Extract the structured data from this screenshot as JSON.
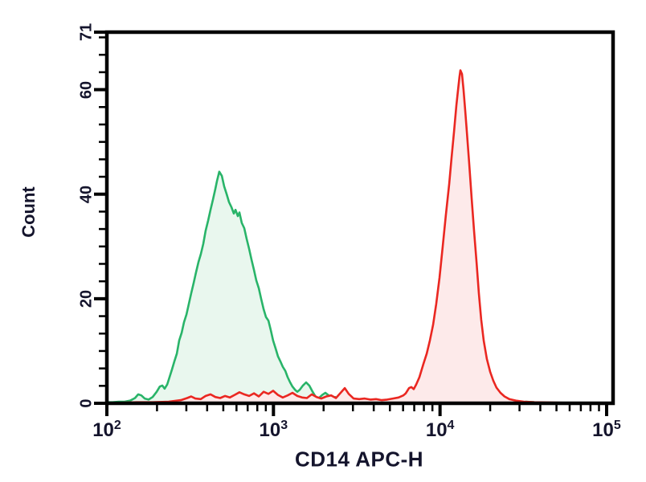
{
  "chart_data": {
    "type": "area",
    "subtype": "flow-cytometry-histogram-overlay",
    "title": "",
    "xlabel": "CD14 APC-H",
    "ylabel": "Count",
    "x_axis": {
      "scale": "log10",
      "min": 100,
      "max": 100000,
      "grid": false
    },
    "y_axis": {
      "min": 0,
      "max": 71,
      "grid": false
    },
    "x_ticks": [
      {
        "log10": 2,
        "base": "10",
        "exp": "2"
      },
      {
        "log10": 3,
        "base": "10",
        "exp": "3"
      },
      {
        "log10": 4,
        "base": "10",
        "exp": "4"
      },
      {
        "log10": 5,
        "base": "10",
        "exp": "5"
      }
    ],
    "y_ticks": [
      {
        "value": 0,
        "label": "0"
      },
      {
        "value": 20,
        "label": "20"
      },
      {
        "value": 40,
        "label": "40"
      },
      {
        "value": 60,
        "label": "60"
      },
      {
        "value": 71,
        "label": "71"
      }
    ],
    "legend": "none",
    "axis_color": "#000000",
    "label_color": "#14142c",
    "series": [
      {
        "name": "green",
        "peak_x": 470,
        "peak_count": 44.3,
        "line_color": "#29b469",
        "fill_color": "#e9f7ee",
        "points": [
          [
            2.0,
            0.2
          ],
          [
            2.034,
            0.2
          ],
          [
            2.072,
            0.3
          ],
          [
            2.106,
            0.3
          ],
          [
            2.14,
            0.5
          ],
          [
            2.169,
            1.0
          ],
          [
            2.188,
            1.7
          ],
          [
            2.207,
            1.5
          ],
          [
            2.227,
            0.9
          ],
          [
            2.251,
            0.7
          ],
          [
            2.275,
            1.2
          ],
          [
            2.299,
            2.2
          ],
          [
            2.318,
            3.2
          ],
          [
            2.333,
            3.4
          ],
          [
            2.347,
            2.8
          ],
          [
            2.362,
            3.6
          ],
          [
            2.376,
            5.0
          ],
          [
            2.391,
            6.5
          ],
          [
            2.405,
            8.0
          ],
          [
            2.42,
            9.5
          ],
          [
            2.434,
            12.0
          ],
          [
            2.449,
            13.5
          ],
          [
            2.463,
            15.5
          ],
          [
            2.478,
            17.0
          ],
          [
            2.492,
            19.0
          ],
          [
            2.506,
            21.0
          ],
          [
            2.521,
            23.0
          ],
          [
            2.535,
            25.0
          ],
          [
            2.55,
            27.0
          ],
          [
            2.564,
            28.5
          ],
          [
            2.579,
            30.5
          ],
          [
            2.593,
            33.0
          ],
          [
            2.608,
            35.0
          ],
          [
            2.622,
            37.0
          ],
          [
            2.637,
            39.0
          ],
          [
            2.651,
            41.0
          ],
          [
            2.661,
            42.5
          ],
          [
            2.675,
            44.3
          ],
          [
            2.69,
            43.5
          ],
          [
            2.704,
            41.5
          ],
          [
            2.719,
            40.0
          ],
          [
            2.733,
            38.5
          ],
          [
            2.748,
            37.5
          ],
          [
            2.762,
            36.3
          ],
          [
            2.772,
            37.0
          ],
          [
            2.786,
            35.8
          ],
          [
            2.796,
            36.5
          ],
          [
            2.81,
            34.5
          ],
          [
            2.825,
            33.5
          ],
          [
            2.839,
            31.5
          ],
          [
            2.854,
            29.5
          ],
          [
            2.868,
            27.5
          ],
          [
            2.883,
            25.5
          ],
          [
            2.897,
            23.5
          ],
          [
            2.912,
            22.0
          ],
          [
            2.926,
            20.0
          ],
          [
            2.941,
            18.0
          ],
          [
            2.955,
            16.5
          ],
          [
            2.97,
            15.8
          ],
          [
            2.984,
            14.0
          ],
          [
            2.998,
            12.0
          ],
          [
            3.013,
            10.5
          ],
          [
            3.027,
            9.0
          ],
          [
            3.042,
            8.0
          ],
          [
            3.056,
            7.0
          ],
          [
            3.071,
            6.2
          ],
          [
            3.085,
            5.0
          ],
          [
            3.1,
            4.0
          ],
          [
            3.114,
            3.2
          ],
          [
            3.129,
            2.6
          ],
          [
            3.143,
            2.2
          ],
          [
            3.158,
            2.6
          ],
          [
            3.177,
            3.4
          ],
          [
            3.196,
            4.0
          ],
          [
            3.215,
            3.4
          ],
          [
            3.235,
            2.2
          ],
          [
            3.254,
            1.2
          ],
          [
            3.273,
            1.0
          ],
          [
            3.293,
            1.6
          ],
          [
            3.312,
            2.0
          ],
          [
            3.331,
            1.5
          ],
          [
            3.35,
            0.8
          ],
          [
            3.37,
            1.2
          ],
          [
            3.389,
            0.7
          ],
          [
            3.413,
            0.4
          ],
          [
            3.442,
            0.3
          ],
          [
            3.481,
            0.2
          ],
          [
            3.529,
            0.2
          ],
          [
            3.625,
            0.1
          ],
          [
            3.77,
            0.1
          ],
          [
            4.06,
            0.1
          ],
          [
            4.445,
            0.1
          ],
          [
            4.518,
            0.3
          ],
          [
            4.566,
            0.2
          ],
          [
            4.638,
            0.1
          ],
          [
            5.0,
            0.0
          ]
        ]
      },
      {
        "name": "red",
        "peak_x": 13300,
        "peak_count": 63.7,
        "line_color": "#ea2721",
        "fill_color": "#fdeaea",
        "points": [
          [
            2.0,
            0.1
          ],
          [
            2.082,
            0.1
          ],
          [
            2.178,
            0.2
          ],
          [
            2.275,
            0.2
          ],
          [
            2.371,
            0.3
          ],
          [
            2.444,
            0.6
          ],
          [
            2.482,
            1.0
          ],
          [
            2.506,
            1.3
          ],
          [
            2.531,
            0.9
          ],
          [
            2.564,
            0.8
          ],
          [
            2.593,
            1.4
          ],
          [
            2.622,
            1.7
          ],
          [
            2.651,
            1.2
          ],
          [
            2.68,
            1.0
          ],
          [
            2.709,
            1.4
          ],
          [
            2.738,
            1.1
          ],
          [
            2.767,
            1.6
          ],
          [
            2.796,
            2.1
          ],
          [
            2.825,
            1.7
          ],
          [
            2.854,
            1.4
          ],
          [
            2.883,
            1.9
          ],
          [
            2.912,
            1.3
          ],
          [
            2.941,
            2.2
          ],
          [
            2.97,
            1.8
          ],
          [
            2.998,
            2.4
          ],
          [
            3.027,
            1.6
          ],
          [
            3.056,
            1.1
          ],
          [
            3.085,
            1.5
          ],
          [
            3.114,
            2.0
          ],
          [
            3.143,
            1.4
          ],
          [
            3.172,
            1.1
          ],
          [
            3.201,
            1.0
          ],
          [
            3.23,
            1.7
          ],
          [
            3.259,
            1.2
          ],
          [
            3.288,
            0.9
          ],
          [
            3.317,
            1.3
          ],
          [
            3.346,
            1.5
          ],
          [
            3.375,
            1.0
          ],
          [
            3.403,
            2.0
          ],
          [
            3.428,
            2.9
          ],
          [
            3.452,
            1.8
          ],
          [
            3.481,
            0.9
          ],
          [
            3.515,
            0.8
          ],
          [
            3.548,
            0.9
          ],
          [
            3.582,
            0.7
          ],
          [
            3.616,
            0.8
          ],
          [
            3.65,
            0.6
          ],
          [
            3.683,
            0.7
          ],
          [
            3.717,
            0.9
          ],
          [
            3.751,
            1.1
          ],
          [
            3.78,
            1.5
          ],
          [
            3.794,
            1.9
          ],
          [
            3.814,
            2.9
          ],
          [
            3.828,
            3.1
          ],
          [
            3.842,
            2.7
          ],
          [
            3.857,
            3.6
          ],
          [
            3.876,
            5.0
          ],
          [
            3.9,
            7.5
          ],
          [
            3.92,
            9.5
          ],
          [
            3.939,
            12.0
          ],
          [
            3.958,
            15.0
          ],
          [
            3.977,
            19.0
          ],
          [
            3.997,
            24.0
          ],
          [
            4.016,
            30.0
          ],
          [
            4.035,
            36.0
          ],
          [
            4.055,
            42.0
          ],
          [
            4.069,
            47.0
          ],
          [
            4.084,
            52.0
          ],
          [
            4.098,
            57.0
          ],
          [
            4.108,
            60.0
          ],
          [
            4.117,
            62.5
          ],
          [
            4.122,
            63.7
          ],
          [
            4.132,
            63.0
          ],
          [
            4.141,
            60.0
          ],
          [
            4.151,
            56.0
          ],
          [
            4.161,
            52.0
          ],
          [
            4.175,
            46.0
          ],
          [
            4.19,
            39.0
          ],
          [
            4.204,
            33.0
          ],
          [
            4.219,
            27.0
          ],
          [
            4.233,
            21.0
          ],
          [
            4.247,
            16.0
          ],
          [
            4.262,
            12.0
          ],
          [
            4.281,
            8.5
          ],
          [
            4.301,
            6.0
          ],
          [
            4.32,
            4.3
          ],
          [
            4.339,
            3.0
          ],
          [
            4.363,
            2.0
          ],
          [
            4.387,
            1.3
          ],
          [
            4.416,
            0.8
          ],
          [
            4.455,
            0.5
          ],
          [
            4.503,
            0.3
          ],
          [
            4.566,
            0.2
          ],
          [
            4.735,
            0.1
          ],
          [
            5.0,
            0.1
          ]
        ]
      }
    ]
  }
}
